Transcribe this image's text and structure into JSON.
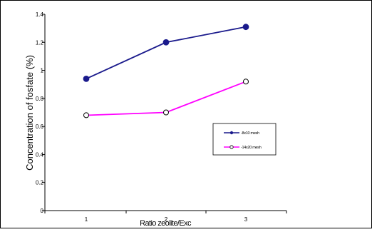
{
  "chart_data": {
    "type": "line",
    "title": "",
    "xlabel": "Ratio zeolite/Exc",
    "ylabel": "Concentration of fosfate (%)",
    "x": [
      1,
      2,
      3
    ],
    "x_tick_labels": [
      "1",
      "2",
      "3"
    ],
    "ylim": [
      0,
      1.4
    ],
    "y_ticks": [
      0,
      0.2,
      0.4,
      0.6,
      0.8,
      1,
      1.2,
      1.4
    ],
    "y_tick_labels": [
      "0",
      "0.2",
      "0.4",
      "0.6",
      "0.8",
      "1",
      "1.2",
      "1.4"
    ],
    "grid": false,
    "legend_position": "right",
    "series": [
      {
        "name": "-8x10 mesh",
        "values": [
          0.94,
          1.2,
          1.31
        ],
        "color": "#1a1a8c",
        "marker": "filled-diamond"
      },
      {
        "name": "-14x20 mesh",
        "values": [
          0.68,
          0.7,
          0.92
        ],
        "color": "#ff00ff",
        "marker": "open-circle"
      }
    ]
  }
}
